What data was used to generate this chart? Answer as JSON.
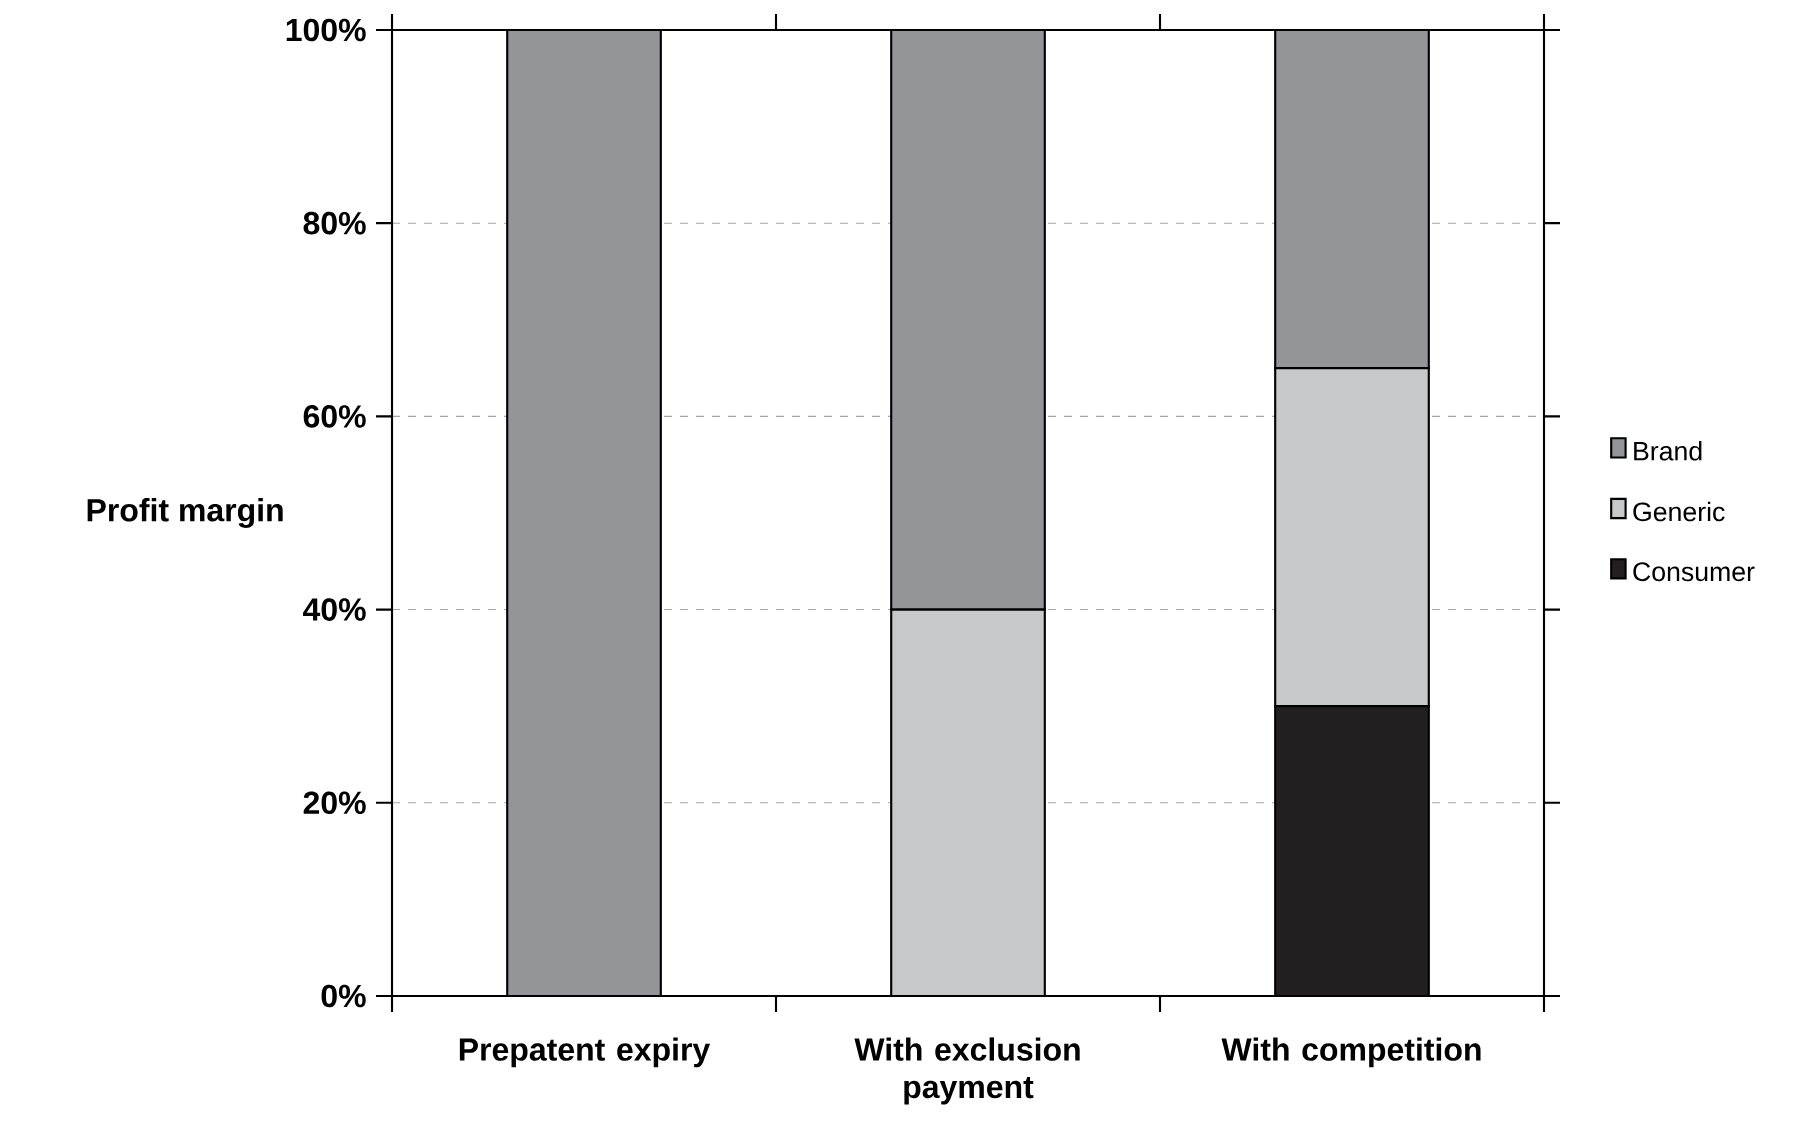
{
  "chart_data": {
    "type": "bar",
    "stacked": true,
    "ylabel": "Profit margin",
    "categories": [
      "Prepatent  expiry",
      "With exclusion payment",
      "With competition"
    ],
    "series": [
      {
        "name": "Consumer",
        "color": "#231f20",
        "values": [
          0,
          0,
          30
        ]
      },
      {
        "name": "Generic",
        "color": "#c7c8ca",
        "values": [
          0,
          40,
          35
        ]
      },
      {
        "name": "Brand",
        "color": "#939598",
        "values": [
          100,
          60,
          35
        ]
      }
    ],
    "ylim": [
      0,
      100
    ],
    "yticks": [
      {
        "value": 0,
        "label": "0%"
      },
      {
        "value": 20,
        "label": "20%"
      },
      {
        "value": 40,
        "label": "40%"
      },
      {
        "value": 60,
        "label": "60%"
      },
      {
        "value": 80,
        "label": "80%"
      },
      {
        "value": 100,
        "label": "100%"
      }
    ],
    "grid": "y",
    "legend": "right"
  }
}
